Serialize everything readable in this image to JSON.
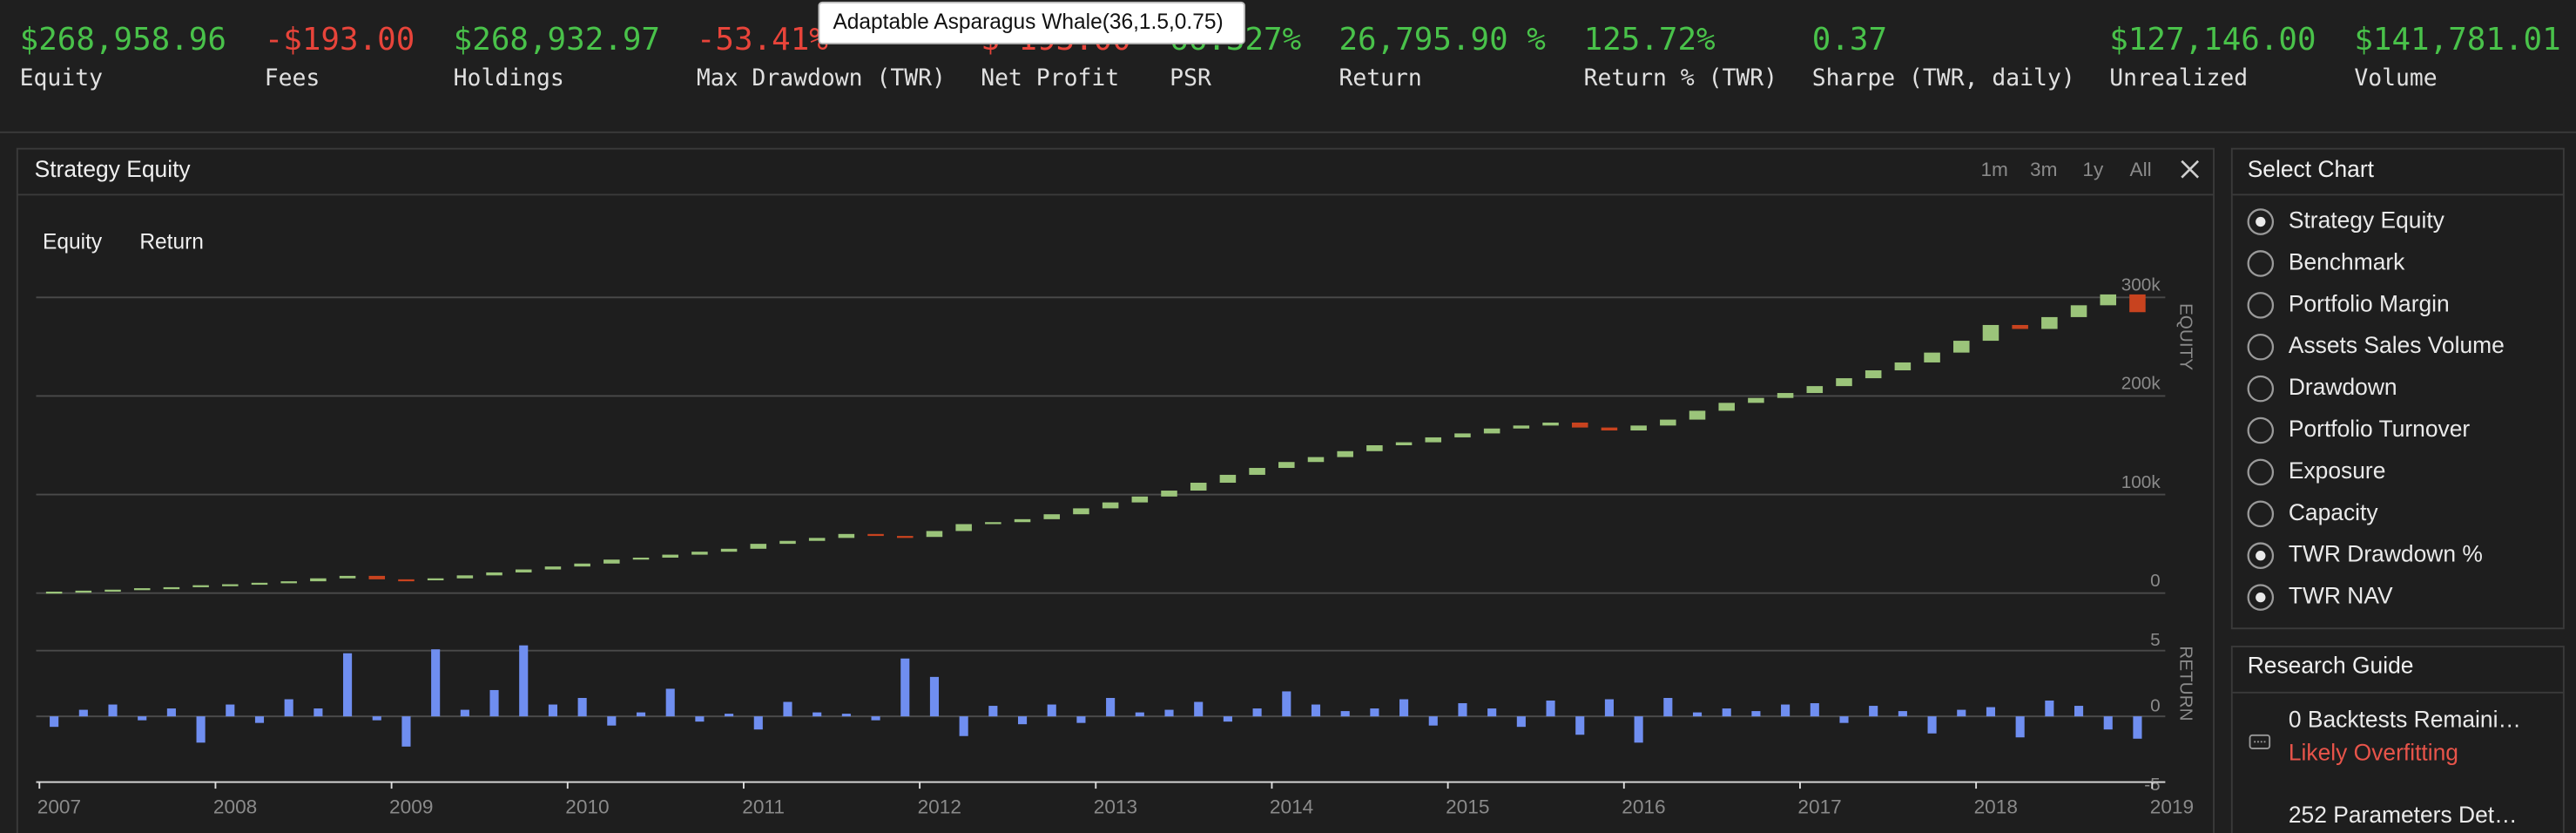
{
  "stats": [
    {
      "value": "$268,958.96",
      "label": "Equity",
      "tone": "positive"
    },
    {
      "value": "-$193.00",
      "label": "Fees",
      "tone": "negative"
    },
    {
      "value": "$268,932.97",
      "label": "Holdings",
      "tone": "positive"
    },
    {
      "value": "-53.41%",
      "label": "Max Drawdown (TWR)",
      "tone": "negative"
    },
    {
      "value": "$-193.00",
      "label": "Net Profit",
      "tone": "negative"
    },
    {
      "value": "66.327%",
      "label": "PSR",
      "tone": "positive"
    },
    {
      "value": "26,795.90 %",
      "label": "Return",
      "tone": "positive"
    },
    {
      "value": "125.72%",
      "label": "Return % (TWR)",
      "tone": "positive"
    },
    {
      "value": "0.37",
      "label": "Sharpe (TWR, daily)",
      "tone": "positive"
    },
    {
      "value": "$127,146.00",
      "label": "Unrealized",
      "tone": "positive"
    },
    {
      "value": "$141,781.01",
      "label": "Volume",
      "tone": "positive"
    }
  ],
  "tooltip": "Adaptable Asparagus Whale(36,1.5,0.75)",
  "chart_panel": {
    "title": "Strategy Equity",
    "ranges": [
      "1m",
      "3m",
      "1y",
      "All"
    ],
    "tabs": [
      "Equity",
      "Return"
    ]
  },
  "chart_data": [
    {
      "type": "candlestick",
      "y_label": "EQUITY",
      "up_color": "#9bc47a",
      "down_color": "#c8431f",
      "xlim": [
        2007,
        2019
      ],
      "ylim": [
        0,
        320000
      ],
      "yticks": [
        0,
        {
          "value": 100000,
          "label": "100k"
        },
        {
          "value": 200000,
          "label": "200k"
        },
        {
          "value": 300000,
          "label": "300k"
        }
      ],
      "grid": true,
      "values": [
        1500,
        2500,
        3500,
        5000,
        6000,
        8000,
        9000,
        10500,
        12000,
        15000,
        17500,
        14000,
        13500,
        15000,
        18000,
        21000,
        24000,
        27000,
        30000,
        34000,
        36000,
        39000,
        42000,
        45000,
        50000,
        53000,
        56000,
        60000,
        58000,
        57000,
        63000,
        70000,
        72000,
        75000,
        80000,
        86000,
        92000,
        98000,
        104000,
        112000,
        120000,
        127000,
        133000,
        138000,
        144000,
        150000,
        153000,
        158000,
        162000,
        167000,
        170000,
        173000,
        168000,
        165000,
        170000,
        176000,
        185000,
        193000,
        198000,
        203000,
        210000,
        218000,
        226000,
        234000,
        244000,
        256000,
        272000,
        268000,
        280000,
        292000,
        303000,
        285000
      ]
    },
    {
      "type": "bar",
      "y_label": "RETURN",
      "color": "#6f8ef0",
      "xlim": [
        2007,
        2019
      ],
      "xticks": [
        2007,
        2008,
        2009,
        2010,
        2011,
        2012,
        2013,
        2014,
        2015,
        2016,
        2017,
        2018,
        2019
      ],
      "ylim": [
        -5,
        5
      ],
      "yticks": [
        -5,
        0,
        5
      ],
      "grid": true,
      "values": [
        -0.8,
        0.5,
        0.9,
        -0.3,
        0.6,
        -2.0,
        0.9,
        -0.5,
        1.3,
        0.6,
        4.8,
        -0.3,
        -2.3,
        5.1,
        0.5,
        2.0,
        5.4,
        0.9,
        1.4,
        -0.7,
        0.3,
        2.1,
        -0.4,
        0.2,
        -1.0,
        1.1,
        0.3,
        0.2,
        -0.3,
        4.4,
        3.0,
        -1.5,
        0.8,
        -0.6,
        0.9,
        -0.5,
        1.4,
        0.3,
        0.5,
        1.1,
        -0.4,
        0.6,
        1.9,
        0.9,
        0.4,
        0.6,
        1.3,
        -0.7,
        1.0,
        0.6,
        -0.8,
        1.2,
        -1.4,
        1.3,
        -2.0,
        1.4,
        0.3,
        0.6,
        0.4,
        0.9,
        1.0,
        -0.5,
        0.8,
        0.4,
        -1.3,
        0.5,
        0.7,
        -1.6,
        1.2,
        0.8,
        -1.0,
        -1.7
      ]
    }
  ],
  "select_chart": {
    "title": "Select Chart",
    "options": [
      {
        "label": "Strategy Equity",
        "selected": true
      },
      {
        "label": "Benchmark",
        "selected": false
      },
      {
        "label": "Portfolio Margin",
        "selected": false
      },
      {
        "label": "Assets Sales Volume",
        "selected": false
      },
      {
        "label": "Drawdown",
        "selected": false
      },
      {
        "label": "Portfolio Turnover",
        "selected": false
      },
      {
        "label": "Exposure",
        "selected": false
      },
      {
        "label": "Capacity",
        "selected": false
      },
      {
        "label": "TWR Drawdown %",
        "selected": true
      },
      {
        "label": "TWR NAV",
        "selected": true
      }
    ]
  },
  "research_guide": {
    "title": "Research Guide",
    "items": [
      {
        "text": "0 Backtests Remaini…",
        "status": "Likely Overfitting"
      },
      {
        "text": "252 Parameters Det…"
      }
    ]
  }
}
